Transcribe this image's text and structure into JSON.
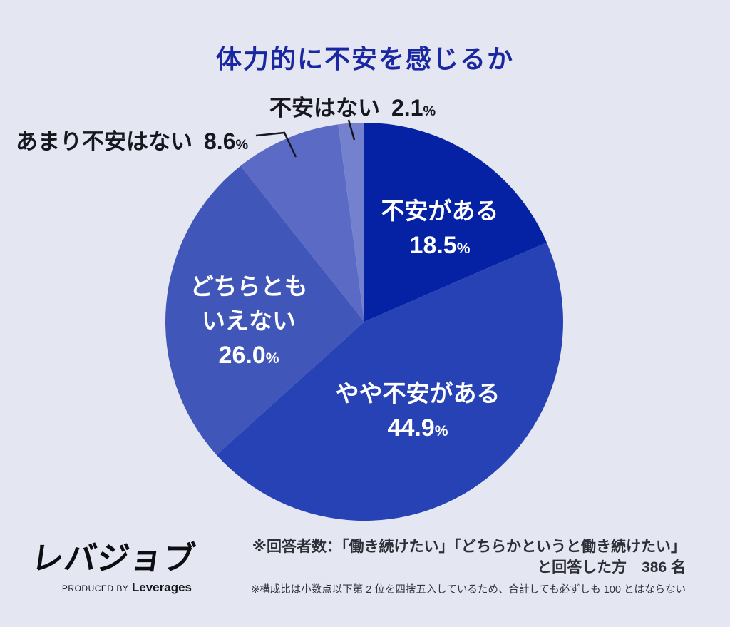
{
  "title": "体力的に不安を感じるか",
  "chart_data": {
    "type": "pie",
    "title": "体力的に不安を感じるか",
    "start_angle": "top",
    "direction": "clockwise",
    "unit": "%",
    "slices": [
      {
        "label": "不安がある",
        "value": 18.5,
        "value_display": "18.5",
        "unit": "%",
        "color": "#0522A5",
        "label_position": "inside"
      },
      {
        "label": "やや不安がある",
        "value": 44.9,
        "value_display": "44.9",
        "unit": "%",
        "color": "#2742B5",
        "label_position": "inside"
      },
      {
        "label": "どちらともいえない",
        "value": 26.0,
        "value_display": "26.0",
        "unit": "%",
        "color": "#4156B9",
        "label_position": "inside",
        "label_lines": [
          "どちらとも",
          "いえない"
        ]
      },
      {
        "label": "あまり不安はない",
        "value": 8.6,
        "value_display": "8.6",
        "unit": "%",
        "color": "#5A6AC5",
        "label_position": "outside"
      },
      {
        "label": "不安はない",
        "value": 2.1,
        "value_display": "2.1",
        "unit": "%",
        "color": "#7381CE",
        "label_position": "outside"
      }
    ]
  },
  "footer": {
    "logo_text": "レバジョブ",
    "logo_produced": "PRODUCED BY",
    "logo_company": "Leverages",
    "note1_line1": "※回答者数：「働き続けたい」「どちらかというと働き続けたい」",
    "note1_line2": "と回答した方　386 名",
    "note2": "※構成比は小数点以下第 2 位を四捨五入しているため、合計しても必ずしも 100 とはならない"
  },
  "colors": {
    "background": "#E4E6F1",
    "title": "#1A27A3",
    "outside_label": "#17171F",
    "inside_label": "#FFFFFF"
  }
}
